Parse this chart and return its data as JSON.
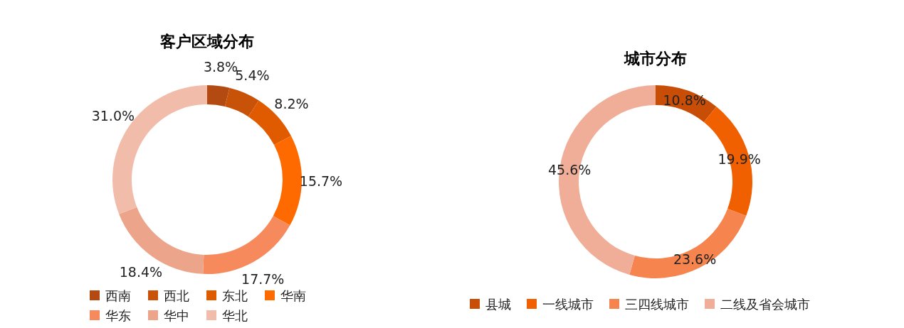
{
  "chart_data": [
    {
      "type": "donut",
      "title": "客户区域分布",
      "categories": [
        "西南",
        "西北",
        "东北",
        "华南",
        "华东",
        "华中",
        "华北"
      ],
      "values": [
        3.8,
        5.4,
        8.2,
        15.7,
        17.7,
        18.4,
        31.0
      ],
      "value_labels": [
        "3.8%",
        "5.4%",
        "8.2%",
        "15.7%",
        "17.7%",
        "18.4%",
        "31.0%"
      ],
      "colors": [
        "#b24a12",
        "#c85208",
        "#e05a00",
        "#ff6a00",
        "#f78a5c",
        "#eca48a",
        "#f2bcaa"
      ],
      "legend": "bottom"
    },
    {
      "type": "donut",
      "title": "城市分布",
      "categories": [
        "县城",
        "一线城市",
        "三四线城市",
        "二线及省会城市"
      ],
      "values": [
        10.8,
        19.9,
        23.6,
        45.6
      ],
      "value_labels": [
        "10.8%",
        "19.9%",
        "23.6%",
        "45.6%"
      ],
      "colors": [
        "#c84e08",
        "#f06000",
        "#f5844f",
        "#f0ae98"
      ],
      "legend": "bottom"
    }
  ]
}
